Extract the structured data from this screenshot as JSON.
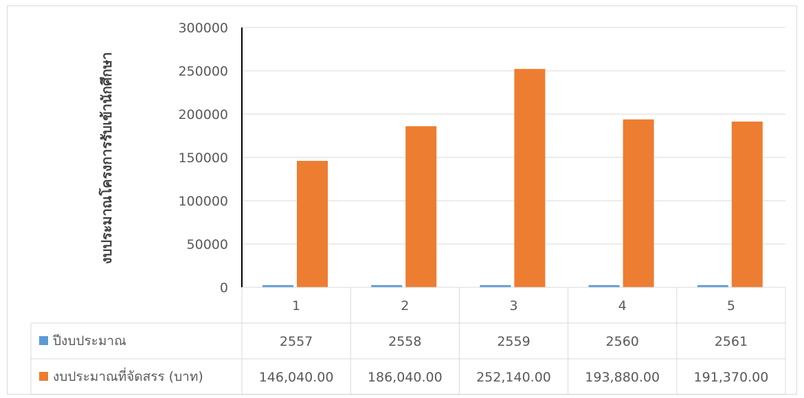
{
  "chart_data": {
    "type": "bar",
    "categories": [
      "1",
      "2",
      "3",
      "4",
      "5"
    ],
    "series": [
      {
        "name": "ปีงบประมาณ",
        "color": "#5b9bd5",
        "values": [
          2557,
          2558,
          2559,
          2560,
          2561
        ],
        "labels": [
          "2557",
          "2558",
          "2559",
          "2560",
          "2561"
        ]
      },
      {
        "name": "งบประมาณที่จัดสรร (บาท)",
        "color": "#ed7d31",
        "values": [
          146040,
          186040,
          252140,
          193880,
          191370
        ],
        "labels": [
          "146,040.00",
          "186,040.00",
          "252,140.00",
          "193,880.00",
          "191,370.00"
        ]
      }
    ],
    "ylabel": "งบประมาณโครงการรับเข้านักศึกษา",
    "xlabel": "",
    "ylim": [
      0,
      300000
    ],
    "yticks": [
      "0",
      "50000",
      "100000",
      "150000",
      "200000",
      "250000",
      "300000"
    ],
    "grid": true,
    "legend": "data-table"
  }
}
